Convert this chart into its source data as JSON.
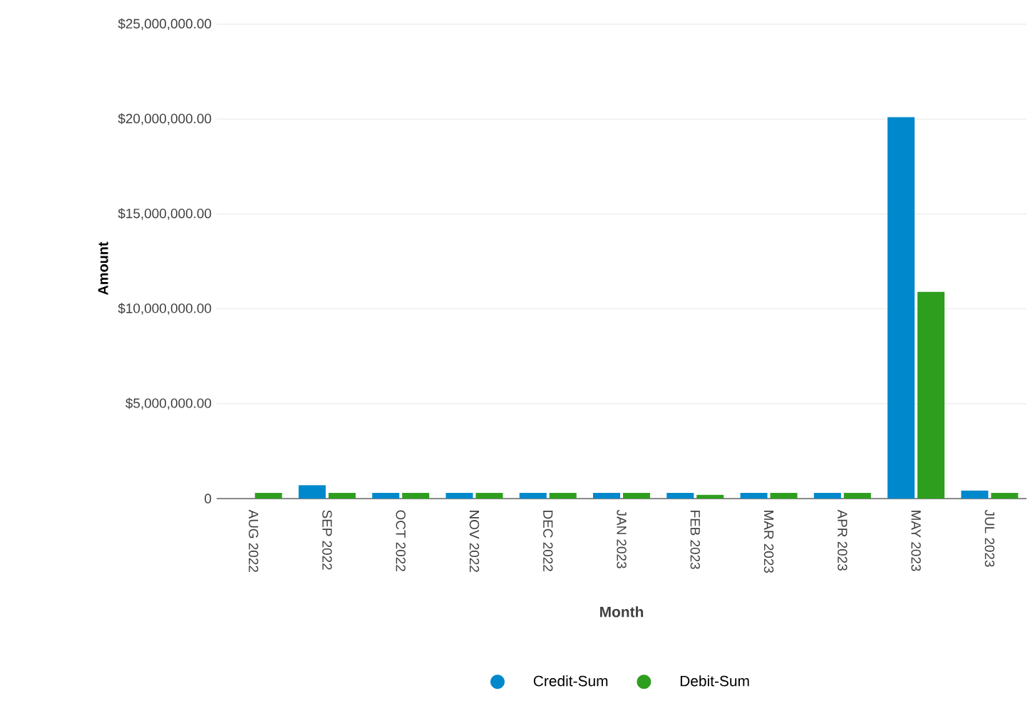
{
  "chart_data": {
    "type": "bar",
    "xlabel": "Month",
    "ylabel": "Amount",
    "categories": [
      "AUG 2022",
      "SEP 2022",
      "OCT 2022",
      "NOV 2022",
      "DEC 2022",
      "JAN 2023",
      "FEB 2023",
      "MAR 2023",
      "APR 2023",
      "MAY 2023",
      "JUL 2023"
    ],
    "series": [
      {
        "name": "Credit-Sum",
        "color": "#0088cc",
        "values": [
          null,
          700000,
          300000,
          300000,
          300000,
          300000,
          300000,
          300000,
          300000,
          20100000,
          420000
        ]
      },
      {
        "name": "Debit-Sum",
        "color": "#2e9e1f",
        "values": [
          300000,
          300000,
          300000,
          300000,
          300000,
          300000,
          200000,
          300000,
          300000,
          10900000,
          300000
        ]
      }
    ],
    "ylim": [
      0,
      25000000
    ],
    "yticks": [
      {
        "value": 0,
        "label": "0"
      },
      {
        "value": 5000000,
        "label": "$5,000,000.00"
      },
      {
        "value": 10000000,
        "label": "$10,000,000.00"
      },
      {
        "value": 15000000,
        "label": "$15,000,000.00"
      },
      {
        "value": 20000000,
        "label": "$20,000,000.00"
      },
      {
        "value": 25000000,
        "label": "$25,000,000.00"
      }
    ],
    "grid": "y",
    "legend": "bottom"
  }
}
